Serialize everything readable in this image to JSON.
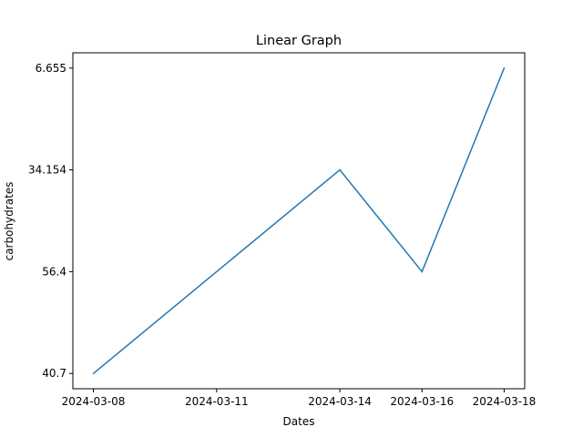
{
  "chart_data": {
    "type": "line",
    "title": "Linear Graph",
    "xlabel": "Dates",
    "ylabel": "carbohydrates",
    "categories": [
      "2024-03-08",
      "2024-03-11",
      "2024-03-14",
      "2024-03-16",
      "2024-03-18"
    ],
    "x": [
      "2024-03-08",
      "2024-03-14",
      "2024-03-16",
      "2024-03-18"
    ],
    "y": [
      "40.7",
      "34.154",
      "56.4",
      "6.655"
    ],
    "y_categories": [
      "40.7",
      "56.4",
      "34.154",
      "6.655"
    ],
    "series_color": "#1f77b4",
    "grid": false
  }
}
